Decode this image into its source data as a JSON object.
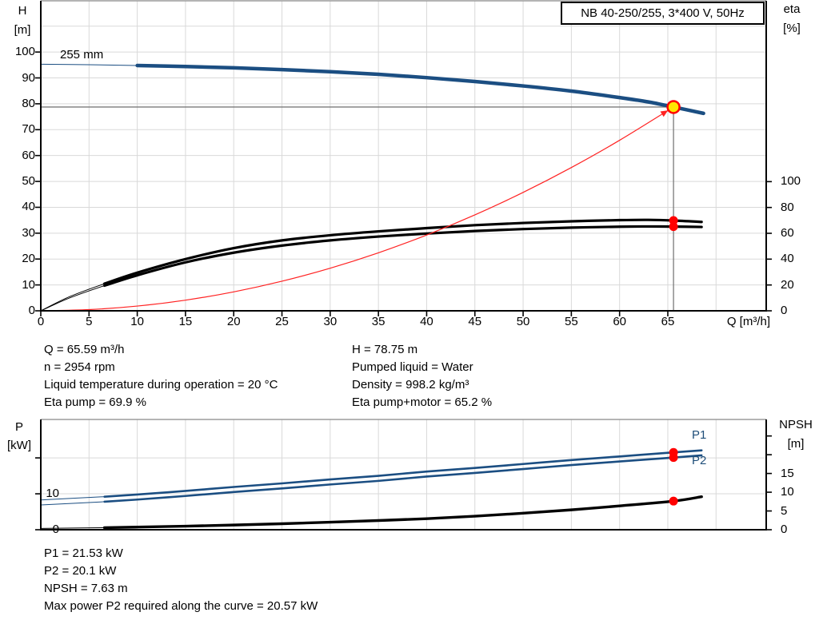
{
  "colors": {
    "curve_blue": "#1b4e82",
    "curve_black": "#000000",
    "system_red": "#ff2222",
    "marker_red": "#ff0000",
    "duty_yellow": "#ffe600",
    "marker_line_gray": "#7a7a7a",
    "grid": "#d9d9d9",
    "border_gray": "#9b9b9b",
    "label_blue": "#1f4e79"
  },
  "chart_data": [
    {
      "id": "head_efficiency",
      "type": "line",
      "title": "NB 40-250/255, 3*400 V, 50Hz",
      "x_axis": {
        "label": "Q [m³/h]",
        "min": 0,
        "max": 75.2,
        "grid_step": 5,
        "ticks": [
          0,
          5,
          10,
          15,
          20,
          25,
          30,
          35,
          40,
          45,
          50,
          55,
          60,
          65
        ]
      },
      "y_left": {
        "label": "H",
        "unit": "[m]",
        "min": 0,
        "max": 119.8,
        "grid_step": 10,
        "ticks": [
          0,
          10,
          20,
          30,
          40,
          50,
          60,
          70,
          80,
          90,
          100
        ],
        "extra_ticks": []
      },
      "y_right": {
        "label": "eta",
        "unit": "[%]",
        "min": 0,
        "max": 240,
        "ticks": [
          0,
          20,
          40,
          60,
          80,
          100
        ],
        "extra_ticks": []
      },
      "series": [
        {
          "name": "head-curve-255mm",
          "label": "255 mm",
          "axis": "left",
          "color": "#1b4e82",
          "width": 4.5,
          "thick_from": 6.6,
          "points": [
            [
              0,
              95.3
            ],
            [
              5,
              95.1
            ],
            [
              10,
              94.8
            ],
            [
              15,
              94.4
            ],
            [
              20,
              93.9
            ],
            [
              25,
              93.2
            ],
            [
              30,
              92.4
            ],
            [
              35,
              91.4
            ],
            [
              40,
              90.1
            ],
            [
              45,
              88.6
            ],
            [
              50,
              86.9
            ],
            [
              55,
              84.9
            ],
            [
              60,
              82.4
            ],
            [
              63,
              80.7
            ],
            [
              65.59,
              78.75
            ],
            [
              68.7,
              76.3
            ]
          ]
        },
        {
          "name": "eta-pump-curve",
          "label": "Eta pump",
          "axis": "right",
          "color": "#000000",
          "width": 3.2,
          "thick_from": 6.6,
          "points": [
            [
              0,
              0
            ],
            [
              3,
              11
            ],
            [
              6.6,
              21
            ],
            [
              10,
              29.5
            ],
            [
              15,
              40
            ],
            [
              20,
              48.5
            ],
            [
              25,
              54.5
            ],
            [
              30,
              58.5
            ],
            [
              35,
              61.5
            ],
            [
              40,
              64
            ],
            [
              45,
              66.3
            ],
            [
              50,
              68
            ],
            [
              55,
              69.3
            ],
            [
              60,
              70.2
            ],
            [
              63,
              70.4
            ],
            [
              65.59,
              69.9
            ],
            [
              68.5,
              68.8
            ]
          ]
        },
        {
          "name": "eta-pump-motor-curve",
          "label": "Eta pump+motor",
          "axis": "right",
          "color": "#000000",
          "width": 3.2,
          "thick_from": 6.6,
          "points": [
            [
              0,
              0
            ],
            [
              3,
              10
            ],
            [
              6.6,
              19.5
            ],
            [
              10,
              27.5
            ],
            [
              15,
              37.5
            ],
            [
              20,
              45
            ],
            [
              25,
              50.5
            ],
            [
              30,
              54.5
            ],
            [
              35,
              57.5
            ],
            [
              40,
              59.8
            ],
            [
              45,
              61.8
            ],
            [
              50,
              63.3
            ],
            [
              55,
              64.4
            ],
            [
              60,
              65.1
            ],
            [
              63,
              65.3
            ],
            [
              65.59,
              65.2
            ],
            [
              68.5,
              64.9
            ]
          ]
        },
        {
          "name": "system-curve",
          "label": "System curve",
          "axis": "left",
          "color": "#ff2222",
          "width": 1.2,
          "thick_from": null,
          "arrow": true,
          "points": [
            [
              0,
              0
            ],
            [
              5,
              0.46
            ],
            [
              10,
              1.83
            ],
            [
              15,
              4.12
            ],
            [
              20,
              7.32
            ],
            [
              25,
              11.44
            ],
            [
              30,
              16.47
            ],
            [
              35,
              22.42
            ],
            [
              40,
              29.28
            ],
            [
              45,
              37.06
            ],
            [
              50,
              45.76
            ],
            [
              55,
              55.37
            ],
            [
              60,
              65.9
            ],
            [
              65.59,
              78.75
            ]
          ]
        }
      ],
      "markers": [
        {
          "name": "duty-point",
          "q": 65.59,
          "value": 78.75,
          "axis": "left",
          "style": "duty",
          "crosshair": true
        },
        {
          "name": "eta-pump-point",
          "q": 65.59,
          "value": 69.9,
          "axis": "right",
          "style": "dot",
          "crosshair": false
        },
        {
          "name": "eta-pump-motor-point",
          "q": 65.59,
          "value": 65.2,
          "axis": "right",
          "style": "dot",
          "crosshair": false
        }
      ]
    },
    {
      "id": "power_npsh",
      "type": "line",
      "title": "",
      "x_axis": {
        "label": "",
        "min": 0,
        "max": 75.2,
        "grid_step": 5,
        "ticks": []
      },
      "y_left": {
        "label": "P",
        "unit": "[kW]",
        "min": 0,
        "max": 30.7,
        "grid_step": 10,
        "ticks": [
          0,
          10
        ],
        "extra_ticks": [
          20
        ]
      },
      "y_right": {
        "label": "NPSH",
        "unit": "[m]",
        "min": 0,
        "max": 29.4,
        "ticks": [
          0,
          5,
          10,
          15
        ],
        "extra_ticks": [
          20,
          25
        ]
      },
      "series": [
        {
          "name": "p1-curve",
          "label": "P1",
          "axis": "left",
          "color": "#1b4e82",
          "width": 2.6,
          "thick_from": 6.6,
          "points": [
            [
              0,
              8.3
            ],
            [
              6.6,
              9.2
            ],
            [
              10,
              9.8
            ],
            [
              15,
              10.8
            ],
            [
              20,
              11.9
            ],
            [
              25,
              12.9
            ],
            [
              30,
              14
            ],
            [
              35,
              15
            ],
            [
              40,
              16.2
            ],
            [
              45,
              17.2
            ],
            [
              50,
              18.3
            ],
            [
              55,
              19.4
            ],
            [
              60,
              20.4
            ],
            [
              65.59,
              21.53
            ],
            [
              68.5,
              22.1
            ]
          ]
        },
        {
          "name": "p2-curve",
          "label": "P2",
          "axis": "left",
          "color": "#1b4e82",
          "width": 2.6,
          "thick_from": 6.6,
          "points": [
            [
              0,
              6.9
            ],
            [
              6.6,
              7.8
            ],
            [
              10,
              8.4
            ],
            [
              15,
              9.4
            ],
            [
              20,
              10.5
            ],
            [
              25,
              11.5
            ],
            [
              30,
              12.6
            ],
            [
              35,
              13.6
            ],
            [
              40,
              14.8
            ],
            [
              45,
              15.8
            ],
            [
              50,
              16.9
            ],
            [
              55,
              18
            ],
            [
              60,
              19
            ],
            [
              65.59,
              20.1
            ],
            [
              68.5,
              20.7
            ]
          ]
        },
        {
          "name": "npsh-curve",
          "label": "NPSH",
          "axis": "right",
          "color": "#000000",
          "width": 3.4,
          "thick_from": 6.6,
          "points": [
            [
              0,
              0.35
            ],
            [
              6.6,
              0.55
            ],
            [
              10,
              0.7
            ],
            [
              15,
              0.95
            ],
            [
              20,
              1.25
            ],
            [
              25,
              1.6
            ],
            [
              30,
              2
            ],
            [
              35,
              2.45
            ],
            [
              40,
              2.95
            ],
            [
              45,
              3.6
            ],
            [
              50,
              4.4
            ],
            [
              55,
              5.3
            ],
            [
              60,
              6.35
            ],
            [
              65.59,
              7.63
            ],
            [
              68.5,
              8.8
            ]
          ]
        }
      ],
      "markers": [
        {
          "name": "p1-point",
          "q": 65.59,
          "value": 21.53,
          "axis": "left",
          "style": "dot",
          "crosshair": false
        },
        {
          "name": "p2-point",
          "q": 65.59,
          "value": 20.1,
          "axis": "left",
          "style": "dot",
          "crosshair": false
        },
        {
          "name": "npsh-point",
          "q": 65.59,
          "value": 7.63,
          "axis": "right",
          "style": "dot",
          "crosshair": false
        }
      ]
    }
  ],
  "info": {
    "top_left": [
      "Q = 65.59 m³/h",
      "n = 2954 rpm",
      "Liquid temperature during operation = 20 °C",
      "Eta pump = 69.9 %"
    ],
    "top_right": [
      "H = 78.75 m",
      "Pumped liquid = Water",
      "Density = 998.2 kg/m³",
      "Eta pump+motor = 65.2 %"
    ],
    "bottom": [
      "P1 = 21.53 kW",
      "P2 = 20.1 kW",
      "NPSH = 7.63 m",
      "Max power P2 required along the curve = 20.57 kW"
    ]
  }
}
